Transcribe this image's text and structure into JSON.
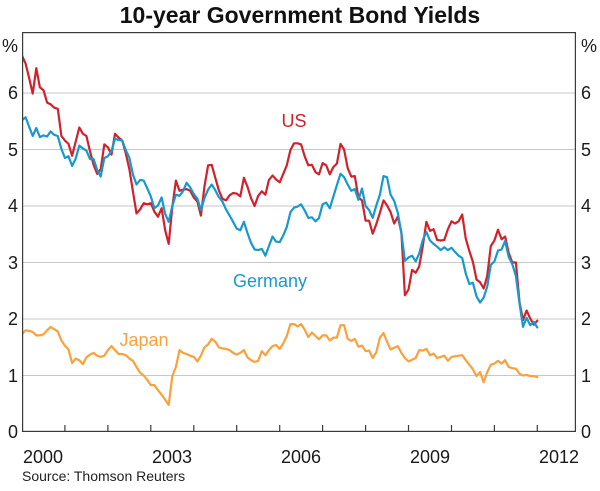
{
  "title": "10-year Government Bond Yields",
  "source": "Source: Thomson Reuters",
  "y_axis": {
    "unit_left": "%",
    "unit_right": "%"
  },
  "style": {
    "axis_color": "#3a3a3a",
    "grid_color": "#c6c7c9",
    "us_red": "#cf222c",
    "germany_blue": "#1899ce",
    "japan_orange": "#f9a13d",
    "text_color": "#1a1a1a"
  },
  "chart_data": {
    "type": "line",
    "title": "10-year Government Bond Yields",
    "ylabel": "%",
    "xlabel": "",
    "grid": "horizontal",
    "xlim": [
      2000,
      2012.9
    ],
    "ylim": [
      0,
      7.08
    ],
    "yticks": [
      0,
      1,
      2,
      3,
      4,
      5,
      6
    ],
    "xticks": [
      2001,
      2002,
      2003,
      2004,
      2005,
      2006,
      2007,
      2008,
      2009,
      2010,
      2011,
      2012
    ],
    "xtick_label_years": [
      2000,
      2003,
      2006,
      2009,
      2012
    ],
    "x_start": 2000.0,
    "x_frequency": "monthly",
    "x_end": 2012.0,
    "annotations": [
      {
        "text": "US",
        "x": 2006.33,
        "y": 5.5,
        "color": "#cf222c"
      },
      {
        "text": "Germany",
        "x": 2005.78,
        "y": 2.67,
        "color": "#1899ce"
      },
      {
        "text": "Japan",
        "x": 2002.84,
        "y": 1.63,
        "color": "#f9a13d"
      }
    ],
    "series": [
      {
        "name": "US",
        "color": "#cf222c",
        "values": [
          6.66,
          6.52,
          6.26,
          5.99,
          6.44,
          6.1,
          6.05,
          5.83,
          5.8,
          5.74,
          5.72,
          5.24,
          5.16,
          5.1,
          4.89,
          5.14,
          5.39,
          5.28,
          5.24,
          4.97,
          4.73,
          4.57,
          4.65,
          5.09,
          5.04,
          4.91,
          5.28,
          5.21,
          5.16,
          4.93,
          4.65,
          4.26,
          3.87,
          3.94,
          4.05,
          4.03,
          4.05,
          3.9,
          3.81,
          3.96,
          3.57,
          3.33,
          3.98,
          4.45,
          4.27,
          4.29,
          4.3,
          4.27,
          4.15,
          4.08,
          3.83,
          4.35,
          4.72,
          4.73,
          4.5,
          4.28,
          4.13,
          4.1,
          4.19,
          4.23,
          4.22,
          4.17,
          4.5,
          4.34,
          4.14,
          4.0,
          4.18,
          4.26,
          4.2,
          4.46,
          4.54,
          4.47,
          4.42,
          4.57,
          4.72,
          4.99,
          5.11,
          5.11,
          5.09,
          4.88,
          4.72,
          4.73,
          4.6,
          4.56,
          4.76,
          4.72,
          4.56,
          4.69,
          4.75,
          5.1,
          5.0,
          4.67,
          4.52,
          4.53,
          4.15,
          4.1,
          3.74,
          3.74,
          3.51,
          3.68,
          3.88,
          4.1,
          4.01,
          3.89,
          3.69,
          3.81,
          3.53,
          2.42,
          2.52,
          2.87,
          2.82,
          2.93,
          3.29,
          3.72,
          3.56,
          3.59,
          3.4,
          3.39,
          3.4,
          3.59,
          3.73,
          3.69,
          3.73,
          3.85,
          3.42,
          3.2,
          3.01,
          2.7,
          2.65,
          2.54,
          2.76,
          3.29,
          3.39,
          3.58,
          3.41,
          3.46,
          3.17,
          3.0,
          3.0,
          2.3,
          1.98,
          2.15,
          2.01,
          1.9,
          1.97
        ]
      },
      {
        "name": "Germany",
        "color": "#1899ce",
        "values": [
          5.52,
          5.57,
          5.4,
          5.24,
          5.38,
          5.22,
          5.25,
          5.23,
          5.32,
          5.26,
          5.24,
          5.01,
          4.85,
          4.88,
          4.71,
          4.84,
          5.07,
          5.02,
          4.98,
          4.83,
          4.83,
          4.64,
          4.52,
          4.85,
          4.88,
          4.97,
          5.19,
          5.17,
          5.16,
          4.99,
          4.85,
          4.56,
          4.38,
          4.46,
          4.45,
          4.31,
          4.17,
          3.96,
          4.01,
          4.15,
          3.86,
          3.72,
          4.0,
          4.2,
          4.18,
          4.26,
          4.41,
          4.33,
          4.21,
          4.13,
          3.93,
          4.14,
          4.29,
          4.38,
          4.28,
          4.16,
          4.08,
          3.94,
          3.83,
          3.72,
          3.6,
          3.57,
          3.72,
          3.52,
          3.35,
          3.23,
          3.22,
          3.24,
          3.12,
          3.29,
          3.46,
          3.37,
          3.36,
          3.48,
          3.63,
          3.89,
          3.97,
          3.99,
          4.03,
          3.92,
          3.79,
          3.8,
          3.73,
          3.79,
          4.03,
          4.06,
          3.96,
          4.17,
          4.37,
          4.57,
          4.51,
          4.38,
          4.27,
          4.3,
          4.11,
          4.31,
          4.0,
          3.93,
          3.79,
          4.01,
          4.2,
          4.53,
          4.51,
          4.2,
          4.09,
          3.88,
          3.52,
          3.03,
          3.09,
          3.12,
          3.02,
          3.16,
          3.4,
          3.54,
          3.39,
          3.33,
          3.28,
          3.22,
          3.27,
          3.22,
          3.26,
          3.19,
          3.12,
          3.08,
          2.8,
          2.62,
          2.64,
          2.4,
          2.29,
          2.38,
          2.57,
          2.96,
          3.02,
          3.21,
          3.23,
          3.38,
          3.1,
          2.97,
          2.76,
          2.28,
          1.86,
          2.02,
          1.89,
          1.95,
          1.85
        ]
      },
      {
        "name": "Japan",
        "color": "#f9a13d",
        "values": [
          1.73,
          1.8,
          1.79,
          1.77,
          1.71,
          1.71,
          1.73,
          1.8,
          1.86,
          1.82,
          1.78,
          1.62,
          1.53,
          1.46,
          1.22,
          1.3,
          1.27,
          1.2,
          1.32,
          1.37,
          1.4,
          1.35,
          1.33,
          1.35,
          1.45,
          1.52,
          1.45,
          1.38,
          1.38,
          1.36,
          1.3,
          1.26,
          1.15,
          1.05,
          1.0,
          0.92,
          0.83,
          0.83,
          0.74,
          0.66,
          0.57,
          0.48,
          0.99,
          1.15,
          1.45,
          1.4,
          1.38,
          1.35,
          1.33,
          1.25,
          1.35,
          1.5,
          1.55,
          1.65,
          1.6,
          1.5,
          1.48,
          1.47,
          1.45,
          1.4,
          1.37,
          1.4,
          1.45,
          1.32,
          1.27,
          1.24,
          1.26,
          1.43,
          1.36,
          1.45,
          1.52,
          1.54,
          1.47,
          1.57,
          1.7,
          1.91,
          1.91,
          1.87,
          1.91,
          1.81,
          1.68,
          1.76,
          1.7,
          1.64,
          1.71,
          1.71,
          1.62,
          1.67,
          1.67,
          1.89,
          1.89,
          1.65,
          1.61,
          1.65,
          1.51,
          1.53,
          1.43,
          1.44,
          1.31,
          1.41,
          1.67,
          1.75,
          1.6,
          1.46,
          1.49,
          1.52,
          1.4,
          1.31,
          1.25,
          1.28,
          1.31,
          1.45,
          1.44,
          1.47,
          1.36,
          1.39,
          1.31,
          1.33,
          1.35,
          1.26,
          1.33,
          1.34,
          1.35,
          1.36,
          1.27,
          1.19,
          1.11,
          0.99,
          1.06,
          0.88,
          1.06,
          1.19,
          1.21,
          1.26,
          1.21,
          1.27,
          1.15,
          1.13,
          1.12,
          1.03,
          1.0,
          1.01,
          0.99,
          0.99,
          0.97
        ]
      }
    ]
  }
}
